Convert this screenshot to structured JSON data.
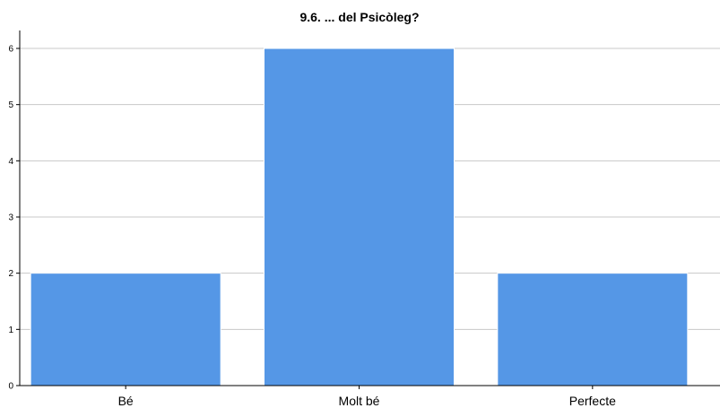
{
  "chart_data": {
    "type": "bar",
    "title": "9.6. ... del Psicòleg?",
    "categories": [
      "Bé",
      "Molt bé",
      "Perfecte"
    ],
    "values": [
      2,
      6,
      2
    ],
    "xlabel": "",
    "ylabel": "",
    "ylim": [
      0,
      6
    ],
    "yticks": [
      0,
      1,
      2,
      3,
      4,
      5,
      6
    ],
    "grid": true,
    "legend": "none",
    "bar_color": "#5597e6"
  }
}
